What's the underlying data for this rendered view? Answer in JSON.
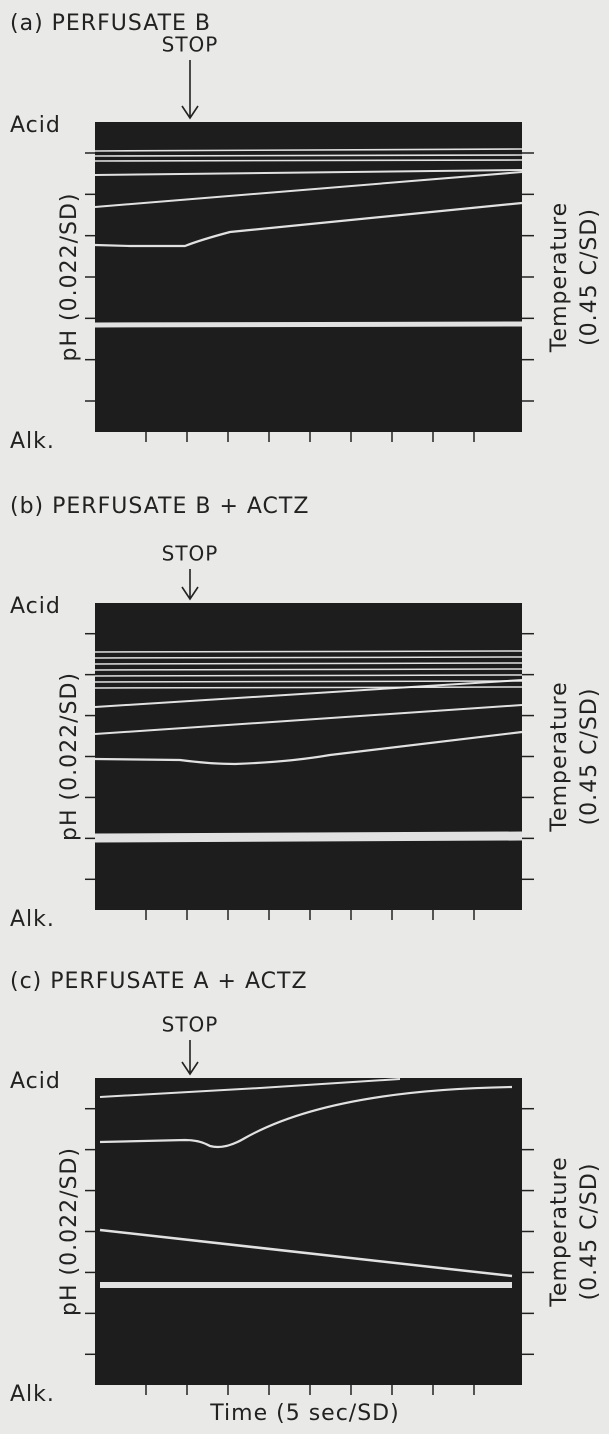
{
  "panels": [
    {
      "title": "(a)  PERFUSATE  B",
      "marker": "STOP",
      "top_label": "Acid",
      "bottom_label": "Alk.",
      "left_axis_label": "pH (0.022/SD)",
      "right_axis_label_1": "Temperature",
      "right_axis_label_2": "(0.45  C/SD)"
    },
    {
      "title": "(b)  PERFUSATE  B + ACTZ",
      "marker": "STOP",
      "top_label": "Acid",
      "bottom_label": "Alk.",
      "left_axis_label": "pH (0.022/SD)",
      "right_axis_label_1": "Temperature",
      "right_axis_label_2": "(0.45  C/SD)"
    },
    {
      "title": "(c)  PERFUSATE   A + ACTZ",
      "marker": "STOP",
      "top_label": "Acid",
      "bottom_label": "Alk.",
      "left_axis_label": "pH (0.022/SD)",
      "right_axis_label_1": "Temperature",
      "right_axis_label_2": "(0.45  C/SD)"
    }
  ],
  "x_axis_label": "Time  (5 sec/SD)"
}
